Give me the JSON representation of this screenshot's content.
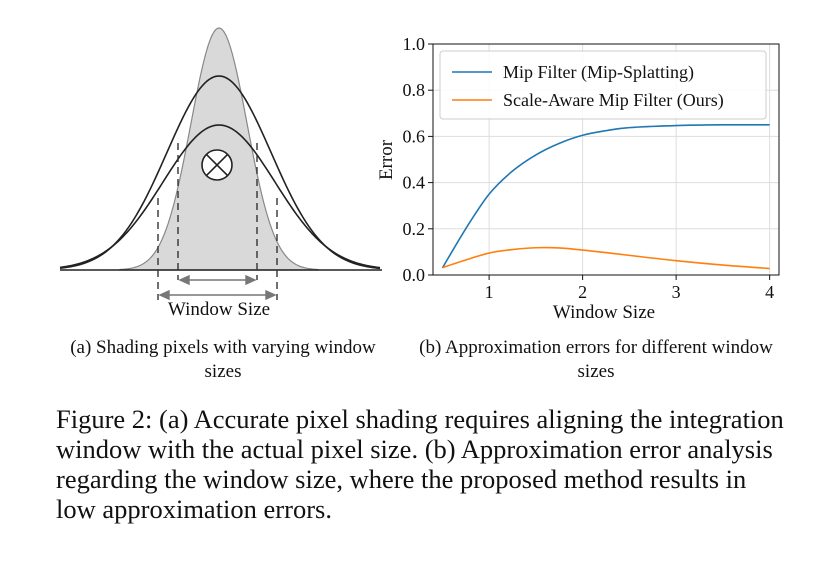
{
  "left_panel": {
    "window_label": "Window Size",
    "caption_a": "(a) Shading pixels with varying window sizes"
  },
  "right_panel": {
    "caption_b": "(b) Approximation errors for different window sizes"
  },
  "chart_data": {
    "type": "line",
    "title": "",
    "xlabel": "Window Size",
    "ylabel": "Error",
    "xlim": [
      0.4,
      4.1
    ],
    "ylim": [
      0.0,
      1.0
    ],
    "xticks": [
      1,
      2,
      3,
      4
    ],
    "yticks": [
      0.0,
      0.2,
      0.4,
      0.6,
      0.8,
      1.0
    ],
    "grid": true,
    "legend_position": "top-right",
    "series": [
      {
        "name": "Mip Filter (Mip-Splatting)",
        "color": "#1f77b4",
        "x": [
          0.5,
          0.75,
          1.0,
          1.25,
          1.5,
          1.75,
          2.0,
          2.25,
          2.5,
          3.0,
          3.5,
          4.0
        ],
        "y": [
          0.03,
          0.2,
          0.35,
          0.45,
          0.52,
          0.57,
          0.605,
          0.625,
          0.638,
          0.647,
          0.65,
          0.65
        ]
      },
      {
        "name": "Scale-Aware Mip Filter (Ours)",
        "color": "#ff7f0e",
        "x": [
          0.5,
          0.75,
          1.0,
          1.25,
          1.5,
          1.75,
          2.0,
          2.25,
          2.5,
          3.0,
          3.5,
          4.0
        ],
        "y": [
          0.032,
          0.065,
          0.095,
          0.11,
          0.118,
          0.117,
          0.108,
          0.097,
          0.085,
          0.062,
          0.043,
          0.028
        ]
      }
    ]
  },
  "figure_caption": "Figure 2: (a) Accurate pixel shading requires aligning the integration window with the actual pixel size. (b) Approximation error analysis regarding the window size, where the proposed method results in low approximation errors."
}
